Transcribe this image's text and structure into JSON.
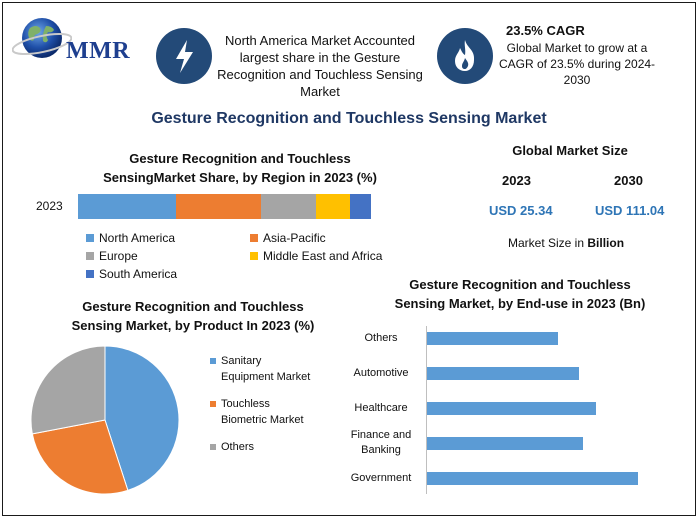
{
  "header": {
    "logo_text": "MMR",
    "info1": [
      "North America Market Accounted",
      "largest share in the Gesture",
      "Recognition and Touchless Sensing",
      "Market"
    ],
    "cagr_title": "23.5% CAGR",
    "cagr_text": [
      "Global Market to grow at a",
      "CAGR of 23.5% during 2024-",
      "2030"
    ],
    "icons": [
      "lightning-icon",
      "flame-icon",
      "globe-icon"
    ]
  },
  "main_title": "Gesture Recognition and Touchless Sensing Market",
  "global_market": {
    "title": "Global Market Size",
    "year1": "2023",
    "year2": "2030",
    "value1": "USD 25.34",
    "value2": "USD 111.04",
    "note_prefix": "Market Size in ",
    "note_unit": "Billion"
  },
  "chart_data": [
    {
      "type": "bar",
      "orientation": "horizontal-stacked",
      "title": "Gesture Recognition and Touchless SensingMarket Share, by Region in 2023 (%)",
      "title_lines": [
        "Gesture Recognition and Touchless",
        "SensingMarket Share, by Region in 2023 (%)"
      ],
      "categories": [
        "2023"
      ],
      "series": [
        {
          "name": "North America",
          "values": [
            32
          ],
          "color": "#5b9bd5"
        },
        {
          "name": "Asia-Pacific",
          "values": [
            28
          ],
          "color": "#ed7d31"
        },
        {
          "name": "Europe",
          "values": [
            18
          ],
          "color": "#a5a5a5"
        },
        {
          "name": "Middle East and Africa",
          "values": [
            11
          ],
          "color": "#ffc000"
        },
        {
          "name": "South America",
          "values": [
            7
          ],
          "color": "#4472c4"
        }
      ],
      "legend": "bottom"
    },
    {
      "type": "pie",
      "title": "Gesture Recognition and Touchless Sensing Market, by Product In 2023 (%)",
      "title_lines": [
        "Gesture Recognition and Touchless",
        "Sensing Market, by Product In 2023 (%)"
      ],
      "slices": [
        {
          "name": "Sanitary Equipment Market",
          "label_lines": [
            "Sanitary",
            "Equipment Market"
          ],
          "value": 45,
          "color": "#5b9bd5"
        },
        {
          "name": "Touchless Biometric Market",
          "label_lines": [
            "Touchless",
            "Biometric Market"
          ],
          "value": 27,
          "color": "#ed7d31"
        },
        {
          "name": "Others",
          "label_lines": [
            "Others"
          ],
          "value": 28,
          "color": "#a5a5a5"
        }
      ],
      "legend": "right"
    },
    {
      "type": "bar",
      "orientation": "horizontal",
      "title": "Gesture Recognition and Touchless Sensing Market, by End-use in 2023 (Bn)",
      "title_lines": [
        "Gesture Recognition and Touchless",
        "Sensing Market, by End-use in 2023 (Bn)"
      ],
      "categories": [
        "Others",
        "Automotive",
        "Healthcare",
        "Finance and Banking",
        "Government"
      ],
      "category_lines": [
        [
          "Others"
        ],
        [
          "Automotive"
        ],
        [
          "Healthcare"
        ],
        [
          "Finance and",
          "Banking"
        ],
        [
          "Government"
        ]
      ],
      "values": [
        3.1,
        3.6,
        4.0,
        3.7,
        5.0
      ],
      "color": "#5b9bd5",
      "xlim": [
        0,
        5.5
      ],
      "grid": false
    }
  ]
}
